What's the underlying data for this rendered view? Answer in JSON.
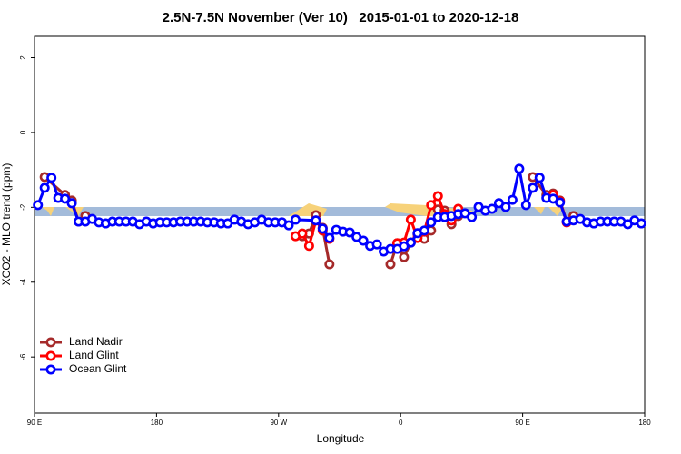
{
  "chart_data": {
    "type": "line",
    "title": "2.5N-7.5N November (Ver 10)   2015-01-01 to 2020-12-18",
    "x_label": "Longitude",
    "y_label": "XCO2 - MLO trend (ppm)",
    "xlim": [
      90,
      540
    ],
    "ylim": [
      -7.5,
      2.57
    ],
    "xticks": [
      {
        "value": 90,
        "label": "90 E"
      },
      {
        "value": 180,
        "label": "180"
      },
      {
        "value": 270,
        "label": "90 W"
      },
      {
        "value": 360,
        "label": "0"
      },
      {
        "value": 450,
        "label": "90 E"
      },
      {
        "value": 540,
        "label": "180"
      }
    ],
    "yticks": [
      2,
      0,
      -2,
      -4,
      -6
    ],
    "legend": "bottom-left",
    "series": [
      {
        "name": "Land Nadir",
        "color": "#a52a2a",
        "x": [
          97.5,
          112.5,
          117.5,
          122.5,
          127.5,
          132.5,
          287.5,
          292.5,
          297.5,
          302.5,
          307.5,
          312.5,
          352.5,
          357.5,
          362.5,
          367.5,
          372.5,
          377.5,
          382.5,
          387.5,
          392.5,
          397.5,
          402.5,
          407.5,
          457.5,
          467.5,
          472.5,
          477.5,
          482.5,
          487.5
        ],
        "values": [
          -1.19,
          -1.67,
          -1.82,
          -2.38,
          -2.23,
          null,
          -2.77,
          -2.7,
          -2.21,
          -2.55,
          -3.52,
          null,
          -3.52,
          -2.96,
          -3.33,
          -2.94,
          -2.72,
          -2.84,
          -2.62,
          -2.06,
          -2.09,
          -2.45,
          -2.23,
          null,
          -1.19,
          -1.67,
          -1.63,
          -1.82,
          -2.38,
          -2.23
        ]
      },
      {
        "name": "Land Glint",
        "color": "#ff0000",
        "x": [
          282.5,
          287.5,
          292.5,
          297.5,
          302.5,
          307.5,
          312.5,
          357.5,
          362.5,
          367.5,
          372.5,
          377.5,
          382.5,
          387.5,
          392.5,
          397.5,
          402.5,
          407.5,
          472.5,
          477.5,
          482.5
        ],
        "values": [
          -2.77,
          -2.7,
          -3.03,
          -2.35,
          -2.62,
          -2.84,
          null,
          -2.96,
          -2.94,
          -2.33,
          -2.82,
          -2.65,
          -1.94,
          -1.7,
          -2.18,
          -2.35,
          -2.04,
          null,
          -1.67,
          -1.84,
          -2.4
        ]
      },
      {
        "name": "Ocean Glint",
        "color": "#0000ff",
        "x": [
          92.5,
          97.5,
          102.5,
          107.5,
          112.5,
          117.5,
          122.5,
          127.5,
          132.5,
          137.5,
          142.5,
          147.5,
          152.5,
          157.5,
          162.5,
          167.5,
          172.5,
          177.5,
          182.5,
          187.5,
          192.5,
          197.5,
          202.5,
          207.5,
          212.5,
          217.5,
          222.5,
          227.5,
          232.5,
          237.5,
          242.5,
          247.5,
          252.5,
          257.5,
          262.5,
          267.5,
          272.5,
          277.5,
          282.5,
          297.5,
          302.5,
          307.5,
          312.5,
          317.5,
          322.5,
          327.5,
          332.5,
          337.5,
          342.5,
          347.5,
          352.5,
          357.5,
          362.5,
          367.5,
          372.5,
          377.5,
          382.5,
          387.5,
          392.5,
          397.5,
          402.5,
          407.5,
          412.5,
          417.5,
          422.5,
          427.5,
          432.5,
          437.5,
          442.5,
          447.5,
          452.5,
          457.5,
          462.5,
          467.5,
          472.5,
          477.5,
          482.5,
          487.5,
          492.5,
          497.5,
          502.5,
          507.5,
          512.5,
          517.5,
          522.5,
          527.5,
          532.5,
          537.5
        ],
        "values": [
          -1.94,
          -1.48,
          -1.21,
          -1.75,
          -1.77,
          -1.89,
          -2.38,
          -2.38,
          -2.31,
          -2.4,
          -2.43,
          -2.38,
          -2.38,
          -2.38,
          -2.38,
          -2.45,
          -2.38,
          -2.43,
          -2.4,
          -2.4,
          -2.4,
          -2.38,
          -2.38,
          -2.38,
          -2.38,
          -2.4,
          -2.4,
          -2.43,
          -2.43,
          -2.33,
          -2.38,
          -2.45,
          -2.4,
          -2.33,
          -2.4,
          -2.4,
          -2.4,
          -2.48,
          -2.33,
          -2.35,
          -2.57,
          -2.82,
          -2.6,
          -2.65,
          -2.67,
          -2.79,
          -2.89,
          -3.03,
          -2.99,
          -3.18,
          -3.11,
          -3.11,
          -3.04,
          -2.94,
          -2.69,
          -2.62,
          -2.4,
          -2.26,
          -2.26,
          -2.23,
          -2.18,
          -2.16,
          -2.26,
          -1.99,
          -2.09,
          -2.04,
          -1.89,
          -1.99,
          -1.8,
          -0.97,
          -1.94,
          -1.48,
          -1.21,
          -1.75,
          -1.77,
          -1.87,
          -2.38,
          -2.35,
          -2.31,
          -2.4,
          -2.43,
          -2.38,
          -2.38,
          -2.38,
          -2.38,
          -2.45,
          -2.35,
          -2.43
        ]
      }
    ]
  }
}
